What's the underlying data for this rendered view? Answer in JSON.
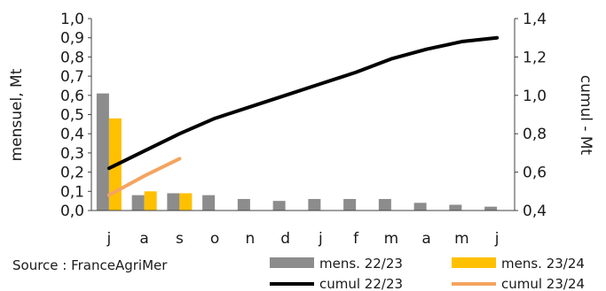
{
  "source": "Source : FranceAgriMer",
  "colors": {
    "mens_2223": "#8c8c8c",
    "mens_2324": "#ffc000",
    "cumul_2223": "#000000",
    "cumul_2324": "#f4a460"
  },
  "chart_data": {
    "type": "bar",
    "categories": [
      "j",
      "a",
      "s",
      "o",
      "n",
      "d",
      "j",
      "f",
      "m",
      "a",
      "m",
      "j"
    ],
    "ylabel": "mensuel, Mt",
    "y2label": "cumul - Mt",
    "ylim": [
      0,
      1.0
    ],
    "y2lim": [
      0.4,
      1.4
    ],
    "yticks": [
      "0,0",
      "0,1",
      "0,2",
      "0,3",
      "0,4",
      "0,5",
      "0,6",
      "0,7",
      "0,8",
      "0,9",
      "1,0"
    ],
    "y2ticks": [
      "0,4",
      "0,6",
      "0,8",
      "1,0",
      "1,2",
      "1,4"
    ],
    "legend_position": "bottom",
    "series": [
      {
        "name": "mens. 22/23",
        "kind": "bar",
        "axis": "left",
        "values": [
          0.61,
          0.08,
          0.09,
          0.08,
          0.06,
          0.05,
          0.06,
          0.06,
          0.06,
          0.04,
          0.03,
          0.02
        ]
      },
      {
        "name": "mens. 23/24",
        "kind": "bar",
        "axis": "left",
        "values": [
          0.48,
          0.1,
          0.09,
          null,
          null,
          null,
          null,
          null,
          null,
          null,
          null,
          null
        ]
      },
      {
        "name": "cumul 22/23",
        "kind": "line",
        "axis": "right",
        "values": [
          0.62,
          0.71,
          0.8,
          0.88,
          0.94,
          1.0,
          1.06,
          1.12,
          1.19,
          1.24,
          1.28,
          1.3
        ]
      },
      {
        "name": "cumul 23/24",
        "kind": "line",
        "axis": "right",
        "values": [
          0.48,
          0.58,
          0.67,
          null,
          null,
          null,
          null,
          null,
          null,
          null,
          null,
          null
        ]
      }
    ]
  }
}
